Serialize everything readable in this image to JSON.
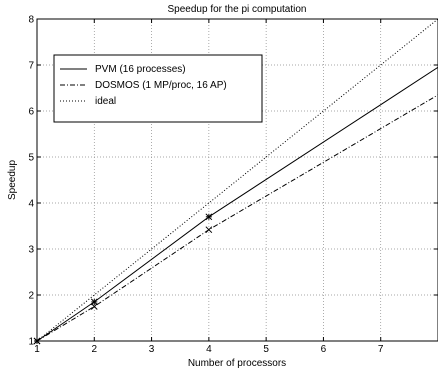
{
  "chart_data": {
    "type": "line",
    "title": "Speedup for the pi computation",
    "xlabel": "Number of processors",
    "ylabel": "Speedup",
    "xlim": [
      1,
      8
    ],
    "ylim": [
      1,
      8
    ],
    "xticks": [
      1,
      2,
      3,
      4,
      5,
      6,
      7
    ],
    "yticks": [
      1,
      2,
      3,
      4,
      5,
      6,
      7,
      8
    ],
    "grid": true,
    "legend_position": "top-left",
    "series": [
      {
        "name": "PVM (16 processes)",
        "line_style": "solid",
        "color": "#000000",
        "x": [
          1,
          2,
          4,
          8
        ],
        "y": [
          1.0,
          1.85,
          3.7,
          6.95
        ],
        "marker_x": [
          1,
          2,
          4
        ],
        "marker_y": [
          1.0,
          1.85,
          3.7
        ]
      },
      {
        "name": "DOSMOS (1 MP/proc, 16 AP)",
        "line_style": "dashdot",
        "color": "#000000",
        "x": [
          1,
          2,
          4,
          8
        ],
        "y": [
          1.0,
          1.75,
          3.42,
          6.35
        ],
        "marker_x": [
          1,
          2,
          4
        ],
        "marker_y": [
          1.0,
          1.75,
          3.42
        ]
      },
      {
        "name": "ideal",
        "line_style": "dotted",
        "color": "#000000",
        "x": [
          1,
          8
        ],
        "y": [
          1,
          8
        ],
        "marker_x": [],
        "marker_y": []
      }
    ]
  }
}
